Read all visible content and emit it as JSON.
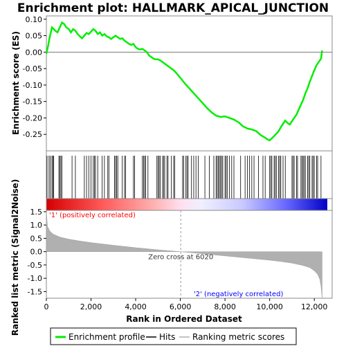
{
  "chart_data": {
    "type": "line",
    "title": "Enrichment plot: HALLMARK_APICAL_JUNCTION",
    "top_panel": {
      "ylabel": "Enrichment score (ES)",
      "ylim": [
        -0.3,
        0.11
      ],
      "yticks": [
        -0.25,
        -0.2,
        -0.15,
        -0.1,
        -0.05,
        0.0,
        0.05,
        0.1
      ],
      "ytick_labels": [
        "-0.25",
        "-0.20",
        "-0.15",
        "-0.10",
        "-0.05",
        "0.00",
        "0.05",
        "0.10"
      ],
      "series": [
        {
          "name": "Enrichment profile",
          "color": "#00ee00",
          "x": [
            0,
            80,
            150,
            250,
            400,
            500,
            600,
            700,
            800,
            900,
            1000,
            1100,
            1200,
            1300,
            1400,
            1500,
            1600,
            1700,
            1800,
            1900,
            2000,
            2100,
            2200,
            2300,
            2400,
            2500,
            2600,
            2700,
            2800,
            2900,
            3000,
            3100,
            3200,
            3300,
            3400,
            3500,
            3600,
            3700,
            3800,
            3900,
            4000,
            4100,
            4200,
            4300,
            4400,
            4500,
            4600,
            4700,
            4800,
            4900,
            5000,
            5100,
            5200,
            5300,
            5400,
            5500,
            5600,
            5700,
            5800,
            5900,
            6000,
            6200,
            6400,
            6600,
            6800,
            7000,
            7200,
            7400,
            7600,
            7800,
            8000,
            8200,
            8400,
            8600,
            8800,
            9000,
            9200,
            9400,
            9600,
            9800,
            9900,
            10000,
            10100,
            10200,
            10300,
            10400,
            10500,
            10600,
            10700,
            10800,
            10900,
            11000,
            11100,
            11200,
            11300,
            11400,
            11500,
            11600,
            11700,
            11800,
            11900,
            12000,
            12100,
            12200,
            12300,
            12350
          ],
          "values": [
            -0.005,
            0.02,
            0.045,
            0.075,
            0.065,
            0.06,
            0.075,
            0.09,
            0.085,
            0.075,
            0.07,
            0.06,
            0.07,
            0.065,
            0.055,
            0.048,
            0.042,
            0.05,
            0.058,
            0.055,
            0.062,
            0.07,
            0.065,
            0.055,
            0.06,
            0.05,
            0.055,
            0.048,
            0.045,
            0.04,
            0.045,
            0.05,
            0.045,
            0.04,
            0.042,
            0.035,
            0.03,
            0.025,
            0.022,
            0.025,
            0.015,
            0.01,
            0.008,
            0.01,
            0.005,
            0.0,
            -0.01,
            -0.015,
            -0.02,
            -0.022,
            -0.022,
            -0.025,
            -0.03,
            -0.035,
            -0.04,
            -0.045,
            -0.05,
            -0.055,
            -0.062,
            -0.07,
            -0.078,
            -0.095,
            -0.11,
            -0.125,
            -0.14,
            -0.155,
            -0.17,
            -0.183,
            -0.193,
            -0.197,
            -0.195,
            -0.2,
            -0.205,
            -0.213,
            -0.225,
            -0.232,
            -0.235,
            -0.24,
            -0.252,
            -0.26,
            -0.265,
            -0.268,
            -0.262,
            -0.255,
            -0.248,
            -0.24,
            -0.228,
            -0.218,
            -0.208,
            -0.215,
            -0.22,
            -0.21,
            -0.2,
            -0.19,
            -0.175,
            -0.16,
            -0.145,
            -0.125,
            -0.11,
            -0.09,
            -0.072,
            -0.055,
            -0.04,
            -0.03,
            -0.02,
            0.005
          ]
        }
      ],
      "hits": [
        30,
        120,
        180,
        250,
        290,
        330,
        560,
        600,
        650,
        700,
        1150,
        1300,
        1700,
        1800,
        1900,
        2000,
        2100,
        2150,
        2200,
        2300,
        2500,
        2600,
        2750,
        2800,
        3050,
        3100,
        3150,
        3200,
        3400,
        3500,
        3550,
        3900,
        3950,
        4300,
        4350,
        4400,
        4450,
        4550,
        4950,
        5000,
        5050,
        5100,
        5200,
        5250,
        5300,
        5400,
        5450,
        5600,
        5700,
        5750,
        6100,
        6150,
        6250,
        6300,
        6350,
        6500,
        6600,
        6700,
        6800,
        7100,
        7300,
        7500,
        7600,
        7650,
        7700,
        7750,
        7800,
        7850,
        7900,
        8000,
        8050,
        8100,
        8200,
        8300,
        8400,
        8700,
        8900,
        9000,
        9100,
        9200,
        9300,
        9500,
        9700,
        9800,
        10000,
        10050,
        10100,
        10200,
        10250,
        10300,
        10400,
        10450,
        10500,
        10600,
        10700,
        11000,
        11050,
        11100,
        11200,
        11250,
        11400,
        11450,
        11500,
        11550,
        11600,
        11700,
        11750,
        11800,
        11900,
        11950,
        12000,
        12100,
        12150,
        12300
      ]
    },
    "bottom_panel": {
      "ylabel": "Ranked list metric (Signal2Noise)",
      "ylim": [
        -1.75,
        1.55
      ],
      "yticks": [
        -1.5,
        -1.0,
        -0.5,
        0.0,
        0.5,
        1.0,
        1.5
      ],
      "ytick_labels": [
        "-1.5",
        "-1.0",
        "-0.5",
        "0.0",
        "0.5",
        "1.0",
        "1.5"
      ],
      "series": [
        {
          "name": "Ranking metric scores",
          "color": "#b0b0b0",
          "x": [
            0,
            50,
            150,
            300,
            600,
            1000,
            1500,
            2000,
            3000,
            4000,
            5000,
            6020,
            7000,
            8000,
            9000,
            10000,
            10500,
            11000,
            11500,
            11800,
            12000,
            12150,
            12250,
            12300,
            12350
          ],
          "values": [
            1.52,
            0.95,
            0.78,
            0.66,
            0.55,
            0.47,
            0.4,
            0.34,
            0.24,
            0.15,
            0.07,
            0.0,
            -0.08,
            -0.16,
            -0.24,
            -0.32,
            -0.37,
            -0.43,
            -0.52,
            -0.6,
            -0.72,
            -0.85,
            -1.05,
            -1.3,
            -1.75
          ]
        }
      ],
      "zero_cross_label": "Zero cross at 6020",
      "zero_cross": 6020,
      "pos_label": "'1' (positively correlated)",
      "neg_label": "'2' (negatively correlated)",
      "pos_color": "#ff0000",
      "neg_color": "#0000ff"
    },
    "xlabel": "Rank in Ordered Dataset",
    "xlim": [
      0,
      12800
    ],
    "xticks": [
      0,
      2000,
      4000,
      6000,
      8000,
      10000,
      12000
    ],
    "xtick_labels": [
      "0",
      "2,000",
      "4,000",
      "6,000",
      "8,000",
      "10,000",
      "12,000"
    ],
    "n_genes": 12350,
    "legend": {
      "position": "bottom",
      "items": [
        "Enrichment profile",
        "Hits",
        "Ranking metric scores"
      ]
    }
  }
}
